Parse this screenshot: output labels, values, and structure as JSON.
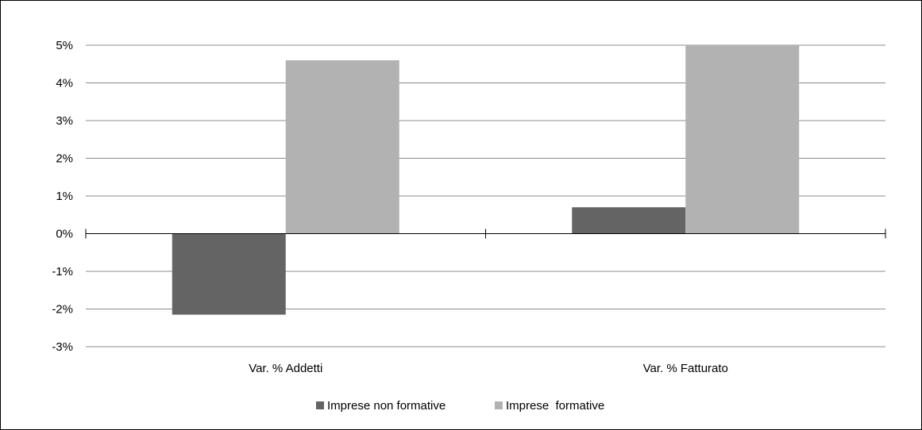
{
  "chart_data": {
    "type": "bar",
    "title": "",
    "xlabel": "",
    "ylabel": "",
    "categories": [
      "Var. % Addetti",
      "Var. % Fatturato"
    ],
    "series": [
      {
        "name": "Imprese non formative",
        "values": [
          -2.15,
          0.7
        ],
        "color": "#646464"
      },
      {
        "name": "Imprese  formative",
        "values": [
          4.6,
          5.0
        ],
        "color": "#b2b2b2"
      }
    ],
    "ylim": [
      -3,
      5
    ],
    "yticks": [
      5,
      4,
      3,
      2,
      1,
      0,
      -1,
      -2,
      -3
    ],
    "ytick_labels": [
      "5%",
      "4%",
      "3%",
      "2%",
      "1%",
      "0%",
      "-1%",
      "-2%",
      "-3%"
    ],
    "grid": true,
    "legend_position": "bottom"
  }
}
